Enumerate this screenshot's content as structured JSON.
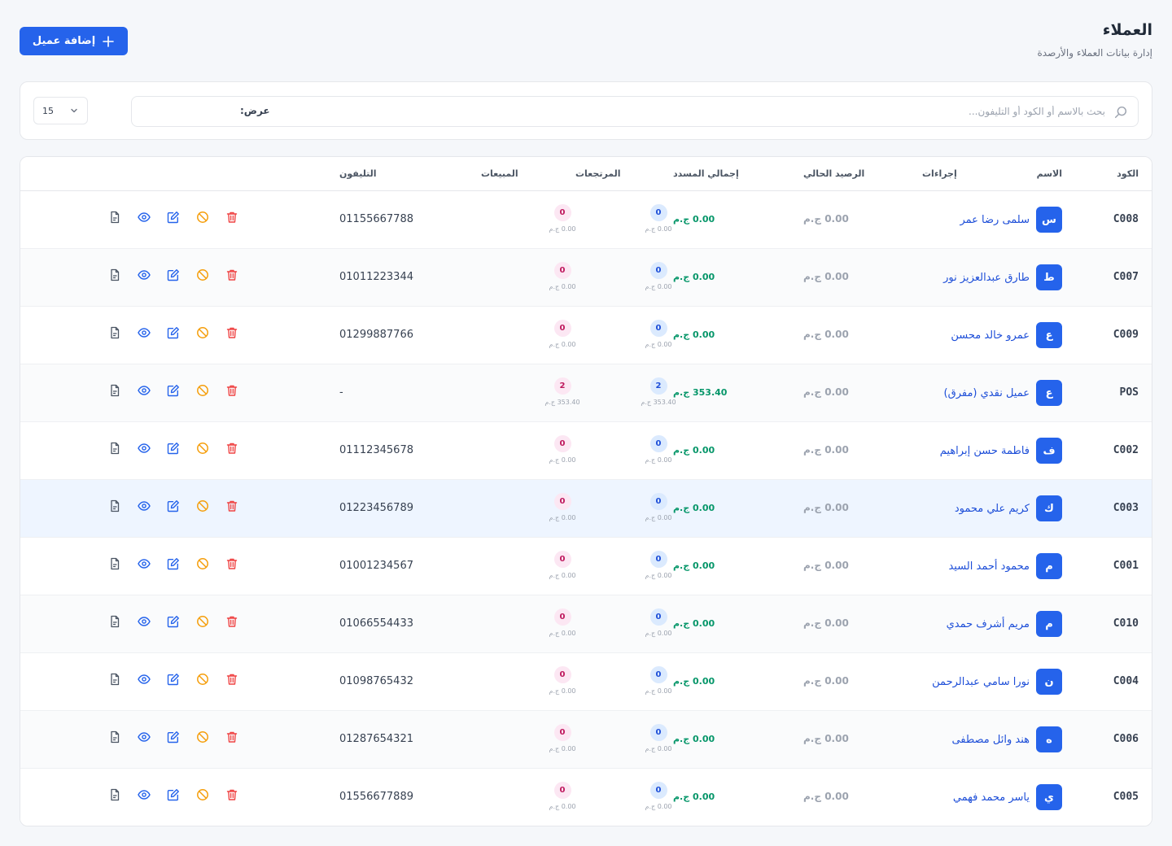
{
  "page": {
    "title": "العملاء",
    "subtitle": "إدارة بيانات العملاء والأرصدة",
    "add_button_label": "إضافة عميل"
  },
  "filters": {
    "search_placeholder": "بحث بالاسم أو الكود أو التليفون...",
    "search_value": "",
    "show_label": "عرض:",
    "per_page": "15"
  },
  "table": {
    "headers": {
      "code": "الكود",
      "name": "الاسم",
      "phone": "التليفون",
      "sales": "المبيعات",
      "returns": "المرتجعات",
      "total_paid": "إجمالي المسدد",
      "balance": "الرصيد الحالي",
      "actions": "إجراءات"
    },
    "rows": [
      {
        "code": "C008",
        "initial": "س",
        "name": "سلمى رضا عمر",
        "phone": "01155667788",
        "sales_count": "0",
        "sales_amount": "0.00 ج.م",
        "returns_count": "0",
        "returns_amount": "0.00 ج.م",
        "paid": "0.00 ج.م",
        "balance": "0.00 ج.م"
      },
      {
        "code": "C007",
        "initial": "ط",
        "name": "طارق عبدالعزيز نور",
        "phone": "01011223344",
        "sales_count": "0",
        "sales_amount": "0.00 ج.م",
        "returns_count": "0",
        "returns_amount": "0.00 ج.م",
        "paid": "0.00 ج.م",
        "balance": "0.00 ج.م"
      },
      {
        "code": "C009",
        "initial": "ع",
        "name": "عمرو خالد محسن",
        "phone": "01299887766",
        "sales_count": "0",
        "sales_amount": "0.00 ج.م",
        "returns_count": "0",
        "returns_amount": "0.00 ج.م",
        "paid": "0.00 ج.م",
        "balance": "0.00 ج.م"
      },
      {
        "code": "POS",
        "initial": "ع",
        "name": "عميل نقدي (مفرق)",
        "phone": "-",
        "sales_count": "2",
        "sales_amount": "353.40 ج.م",
        "returns_count": "2",
        "returns_amount": "353.40 ج.م",
        "paid": "353.40 ج.م",
        "balance": "0.00 ج.م"
      },
      {
        "code": "C002",
        "initial": "ف",
        "name": "فاطمة حسن إبراهيم",
        "phone": "01112345678",
        "sales_count": "0",
        "sales_amount": "0.00 ج.م",
        "returns_count": "0",
        "returns_amount": "0.00 ج.م",
        "paid": "0.00 ج.م",
        "balance": "0.00 ج.م"
      },
      {
        "code": "C003",
        "initial": "ك",
        "name": "كريم علي محمود",
        "phone": "01223456789",
        "sales_count": "0",
        "sales_amount": "0.00 ج.م",
        "returns_count": "0",
        "returns_amount": "0.00 ج.م",
        "paid": "0.00 ج.م",
        "balance": "0.00 ج.م"
      },
      {
        "code": "C001",
        "initial": "م",
        "name": "محمود أحمد السيد",
        "phone": "01001234567",
        "sales_count": "0",
        "sales_amount": "0.00 ج.م",
        "returns_count": "0",
        "returns_amount": "0.00 ج.م",
        "paid": "0.00 ج.م",
        "balance": "0.00 ج.م"
      },
      {
        "code": "C010",
        "initial": "م",
        "name": "مريم أشرف حمدي",
        "phone": "01066554433",
        "sales_count": "0",
        "sales_amount": "0.00 ج.م",
        "returns_count": "0",
        "returns_amount": "0.00 ج.م",
        "paid": "0.00 ج.م",
        "balance": "0.00 ج.م"
      },
      {
        "code": "C004",
        "initial": "ن",
        "name": "نورا سامي عبدالرحمن",
        "phone": "01098765432",
        "sales_count": "0",
        "sales_amount": "0.00 ج.م",
        "returns_count": "0",
        "returns_amount": "0.00 ج.م",
        "paid": "0.00 ج.م",
        "balance": "0.00 ج.م"
      },
      {
        "code": "C006",
        "initial": "ه",
        "name": "هند وائل مصطفى",
        "phone": "01287654321",
        "sales_count": "0",
        "sales_amount": "0.00 ج.م",
        "returns_count": "0",
        "returns_amount": "0.00 ج.م",
        "paid": "0.00 ج.م",
        "balance": "0.00 ج.م"
      },
      {
        "code": "C005",
        "initial": "ي",
        "name": "ياسر محمد فهمي",
        "phone": "01556677889",
        "sales_count": "0",
        "sales_amount": "0.00 ج.م",
        "returns_count": "0",
        "returns_amount": "0.00 ج.م",
        "paid": "0.00 ج.م",
        "balance": "0.00 ج.م"
      }
    ],
    "highlighted_row_index": 5
  },
  "row_actions": [
    "statement-icon",
    "view-icon",
    "edit-icon",
    "block-icon",
    "delete-icon"
  ],
  "colors": {
    "primary": "#2563eb",
    "link": "#1d4ed8",
    "paid_green": "#059669",
    "returns_pink": "#be185d",
    "block_amber": "#f59e0b",
    "delete_red": "#ef4444"
  }
}
